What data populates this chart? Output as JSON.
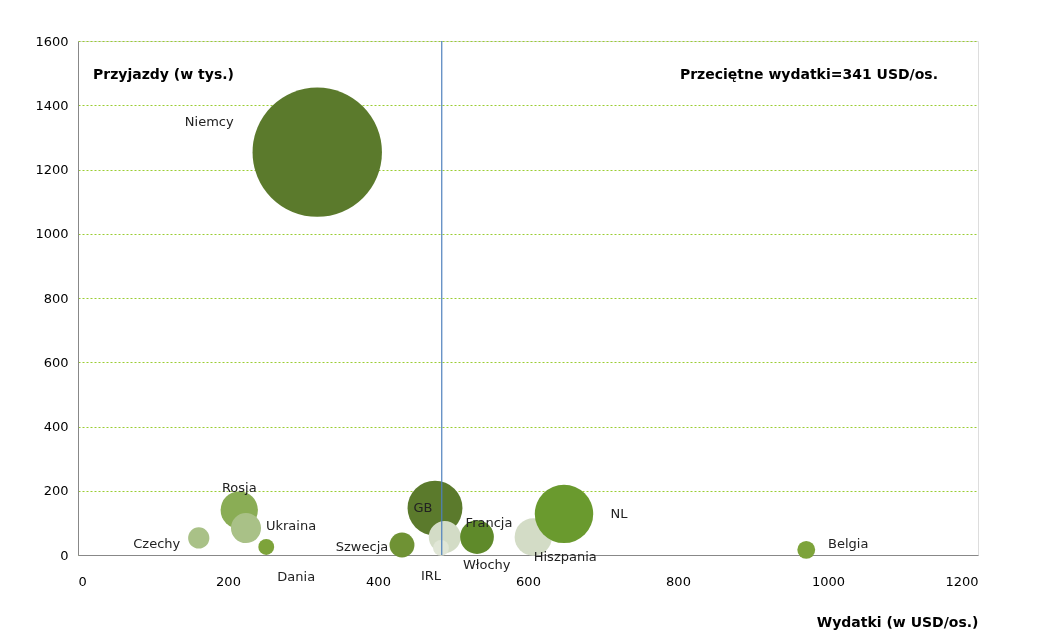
{
  "chart_data": {
    "type": "bubble",
    "xlabel": "Wydatki (w USD/os.)",
    "ylabel": "Przyjazdy (w tys.)",
    "series": [
      {
        "name": "Niemcy",
        "color": "#5b7a2c",
        "x": [
          319
        ],
        "values": [
          1254
        ],
        "sizes": [
          1
        ]
      },
      {
        "name": "Rosja",
        "color": "#8aad55",
        "x": [
          215
        ],
        "values": [
          140
        ],
        "sizes": [
          0.083
        ]
      },
      {
        "name": "Ukraina",
        "color": "#a9c187",
        "x": [
          224
        ],
        "values": [
          84
        ],
        "sizes": [
          0.054
        ]
      },
      {
        "name": "Czechy",
        "color": "#a9c187",
        "x": [
          161
        ],
        "values": [
          53
        ],
        "sizes": [
          0.027
        ]
      },
      {
        "name": "Dania",
        "color": "#7da33a",
        "x": [
          251
        ],
        "values": [
          25
        ],
        "sizes": [
          0.015
        ]
      },
      {
        "name": "Szwecja",
        "color": "#6f9234",
        "x": [
          432
        ],
        "values": [
          31
        ],
        "sizes": [
          0.037
        ]
      },
      {
        "name": "GB",
        "color": "#5b7a2c",
        "x": [
          476
        ],
        "values": [
          146
        ],
        "sizes": [
          0.18
        ]
      },
      {
        "name": "Włochy",
        "color": "#d3dcc6",
        "x": [
          489
        ],
        "values": [
          56
        ],
        "sizes": [
          0.061
        ]
      },
      {
        "name": "IRL",
        "color": "#e0e6d6",
        "x": [
          484
        ],
        "values": [
          22
        ],
        "sizes": [
          0.015
        ]
      },
      {
        "name": "Francja",
        "color": "#5f8a2a",
        "x": [
          532
        ],
        "values": [
          56
        ],
        "sizes": [
          0.068
        ]
      },
      {
        "name": "Hiszpania",
        "color": "#d3dcc6",
        "x": [
          607
        ],
        "values": [
          56
        ],
        "sizes": [
          0.083
        ]
      },
      {
        "name": "NL",
        "color": "#6a9a2e",
        "x": [
          648
        ],
        "values": [
          128
        ],
        "sizes": [
          0.204
        ]
      },
      {
        "name": "Belgia",
        "color": "#7da33a",
        "x": [
          971
        ],
        "values": [
          16
        ],
        "sizes": [
          0.019
        ]
      }
    ],
    "xlim": [
      0,
      1200
    ],
    "xticks": [
      0,
      200,
      400,
      600,
      800,
      1000,
      1200
    ],
    "ylim": [
      0,
      1600
    ],
    "yticks": [
      0,
      200,
      400,
      600,
      800,
      1000,
      1200,
      1400,
      1600
    ],
    "grid": "y",
    "ref_lines": [
      {
        "axis": "x",
        "value": 485,
        "color": "#4f81bd"
      }
    ],
    "annotations": [
      "Przeciętne wydatki=341 USD/os."
    ]
  }
}
